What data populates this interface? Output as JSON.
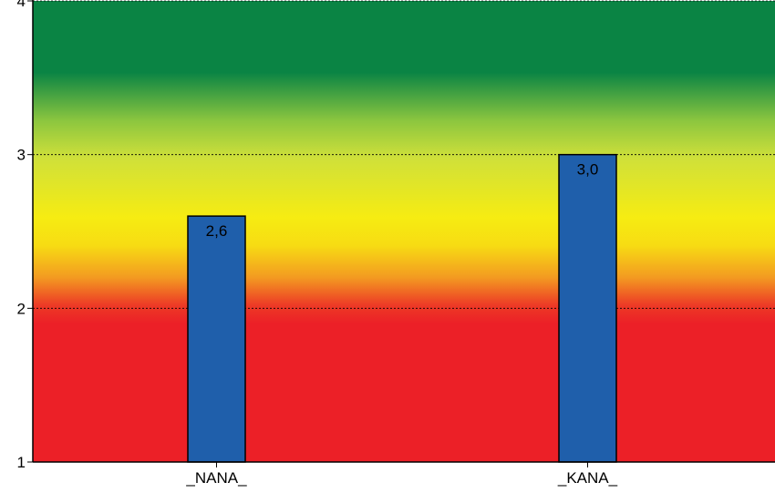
{
  "chart_data": {
    "type": "bar",
    "title": "",
    "xlabel": "",
    "ylabel": "",
    "categories": [
      "_NANA_",
      "_KANA_"
    ],
    "values": [
      2.6,
      3.0
    ],
    "value_labels": [
      "2,6",
      "3,0"
    ],
    "ylim": [
      1,
      4
    ],
    "y_ticks": [
      1,
      2,
      3,
      4
    ],
    "y_tick_labels": [
      "1",
      "2",
      "3",
      "4"
    ],
    "grid": true,
    "bar_color": "#1f5fab",
    "background_bands": [
      {
        "from": 1,
        "to": 2,
        "color": "#ec2027"
      },
      {
        "from": 2,
        "to": 3,
        "color": "#f5ea10"
      },
      {
        "from": 3,
        "to": 4,
        "color": "#0a8444"
      }
    ]
  }
}
